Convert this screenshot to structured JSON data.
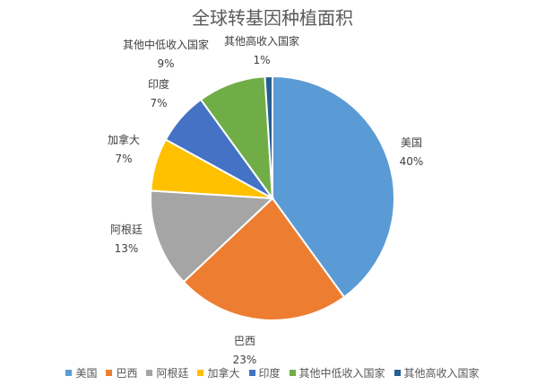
{
  "chart_data": {
    "type": "pie",
    "title": "全球转基因种植面积",
    "slices": [
      {
        "name": "美国",
        "value": 40,
        "label": "40%",
        "color": "#5B9BD5"
      },
      {
        "name": "巴西",
        "value": 23,
        "label": "23%",
        "color": "#ED7D31"
      },
      {
        "name": "阿根廷",
        "value": 13,
        "label": "13%",
        "color": "#A5A5A5"
      },
      {
        "name": "加拿大",
        "value": 7,
        "label": "7%",
        "color": "#FFC000"
      },
      {
        "name": "印度",
        "value": 7,
        "label": "7%",
        "color": "#4472C4"
      },
      {
        "name": "其他中低收入国家",
        "value": 9,
        "label": "9%",
        "color": "#70AD47"
      },
      {
        "name": "其他高收入国家",
        "value": 1,
        "label": "1%",
        "color": "#255E91"
      }
    ],
    "legend_position": "bottom"
  }
}
